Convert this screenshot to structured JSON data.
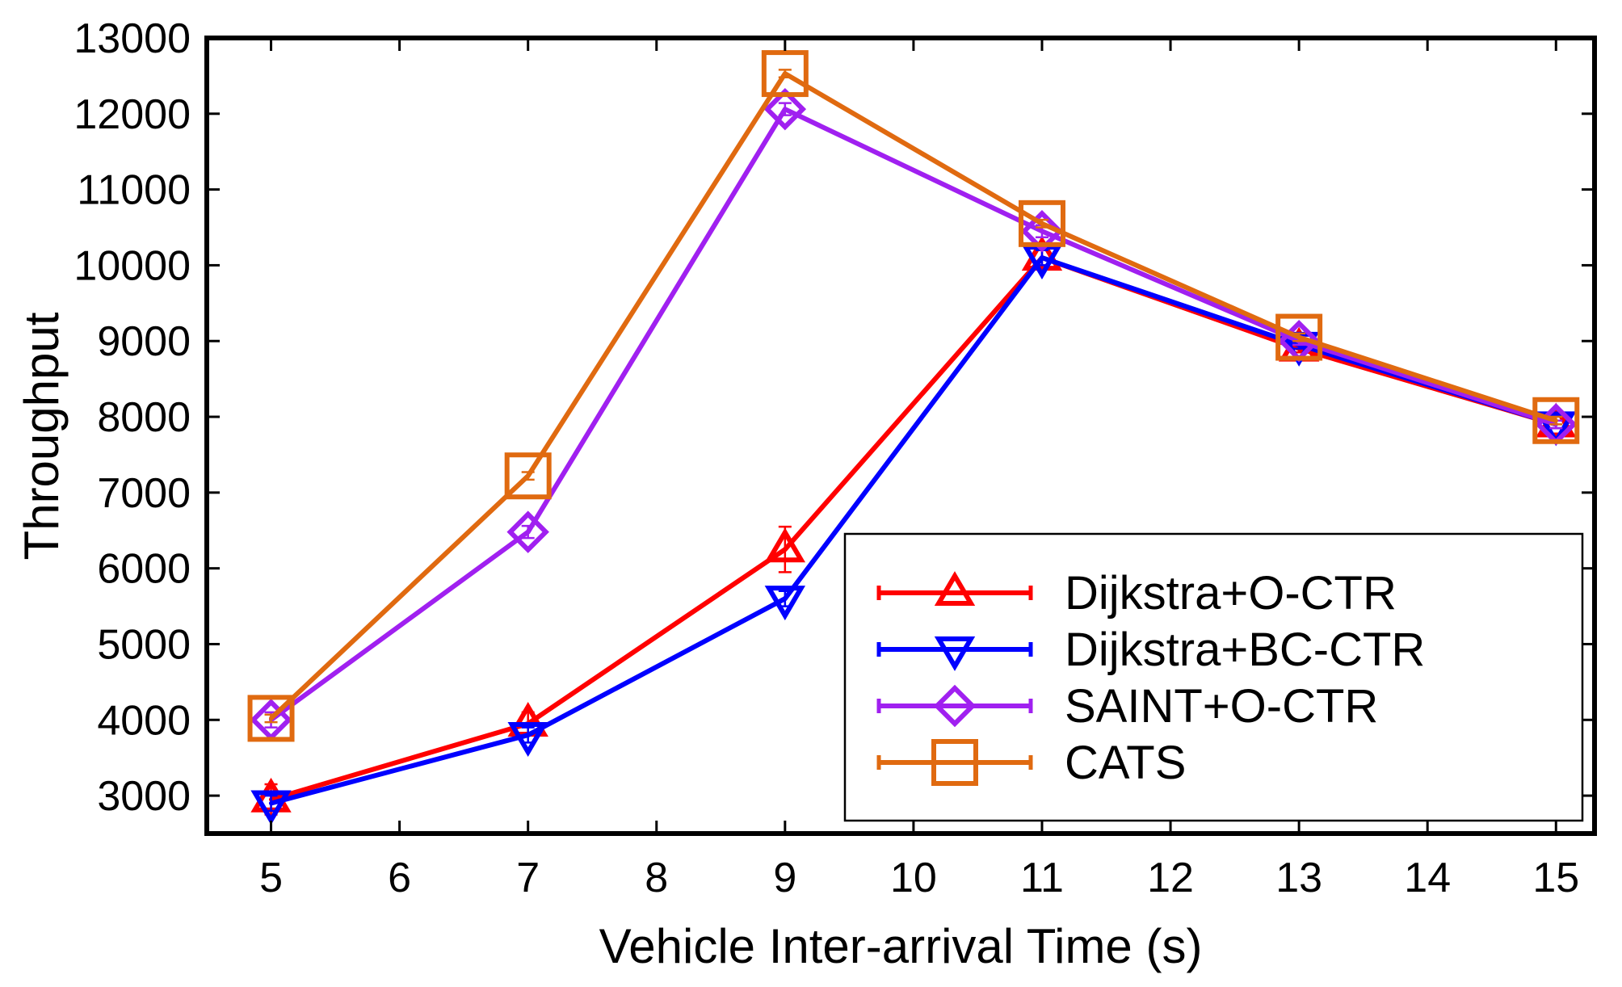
{
  "chart_data": {
    "type": "line",
    "title": "",
    "xlabel": "Vehicle Inter-arrival Time (s)",
    "ylabel": "Throughput",
    "xlim": [
      4.5,
      15.3
    ],
    "ylim": [
      2500,
      13000
    ],
    "xticks": [
      5,
      6,
      7,
      8,
      9,
      10,
      11,
      12,
      13,
      14,
      15
    ],
    "yticks": [
      3000,
      4000,
      5000,
      6000,
      7000,
      8000,
      9000,
      10000,
      11000,
      12000,
      13000
    ],
    "grid": false,
    "legend_position": "bottom-right",
    "x": [
      5,
      7,
      9,
      11,
      13,
      15
    ],
    "series": [
      {
        "name": "Dijkstra+O-CTR",
        "color": "#ff0000",
        "marker": "triangle-up-icon",
        "values": [
          2950,
          3950,
          6250,
          10100,
          8900,
          7900
        ],
        "error": [
          200,
          150,
          300,
          100,
          50,
          50
        ]
      },
      {
        "name": "Dijkstra+BC-CTR",
        "color": "#0000ff",
        "marker": "triangle-down-icon",
        "values": [
          2900,
          3800,
          5600,
          10100,
          8950,
          7900
        ],
        "error": [
          100,
          100,
          100,
          100,
          50,
          50
        ]
      },
      {
        "name": "SAINT+O-CTR",
        "color": "#a020f0",
        "marker": "diamond-icon",
        "values": [
          4000,
          6480,
          12060,
          10450,
          9000,
          7900
        ],
        "error": [
          100,
          80,
          80,
          80,
          50,
          50
        ]
      },
      {
        "name": "CATS",
        "color": "#e06a10",
        "marker": "square-icon",
        "values": [
          4020,
          7220,
          12530,
          10550,
          9050,
          7950
        ],
        "error": [
          50,
          50,
          50,
          50,
          50,
          50
        ]
      }
    ]
  }
}
